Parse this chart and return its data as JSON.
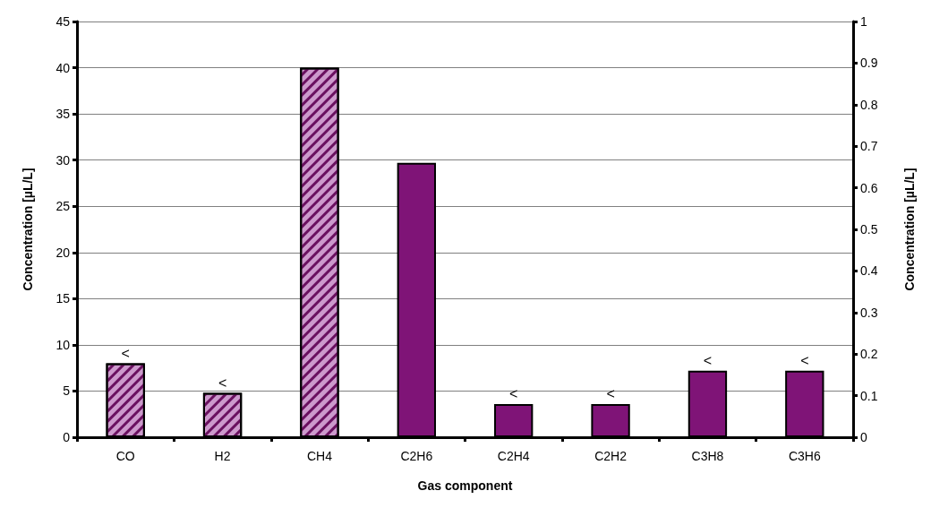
{
  "chart_data": {
    "type": "bar",
    "xlabel": "Gas component",
    "ylabel": "Concentration [µL/L]",
    "y2label": "Concentration [µL/L]",
    "categories": [
      "CO",
      "H2",
      "CH4",
      "C2H6",
      "C2H4",
      "C2H2",
      "C3H8",
      "C3H6"
    ],
    "series": [
      {
        "color": "#cc99cc",
        "values": [
          8,
          4.8,
          40,
          null,
          null,
          null,
          null,
          null
        ]
      },
      {
        "color": "#7f1477",
        "axis": "y2",
        "values": [
          null,
          null,
          null,
          0.66,
          0.08,
          0.08,
          0.16,
          0.16
        ]
      }
    ],
    "ylim": [
      0,
      45
    ],
    "yticks": [
      0,
      5,
      10,
      15,
      20,
      25,
      30,
      35,
      40,
      45
    ],
    "y2lim": [
      0,
      1
    ],
    "y2ticks": [
      0,
      0.1,
      0.2,
      0.3,
      0.4,
      0.5,
      0.6,
      0.7,
      0.8,
      0.9,
      1
    ],
    "grid": "y",
    "annotations": [
      {
        "text": "<",
        "x": "CO",
        "y": 8
      },
      {
        "text": "<",
        "x": "H2",
        "y": 4.8
      },
      {
        "text": "<",
        "x": "C2H4",
        "y": 3.6
      },
      {
        "text": "<",
        "x": "C2H2",
        "y": 3.6
      },
      {
        "text": "<",
        "x": "C3H8",
        "y": 7.2
      },
      {
        "text": "<",
        "x": "C3H6",
        "y": 7.2
      }
    ]
  }
}
